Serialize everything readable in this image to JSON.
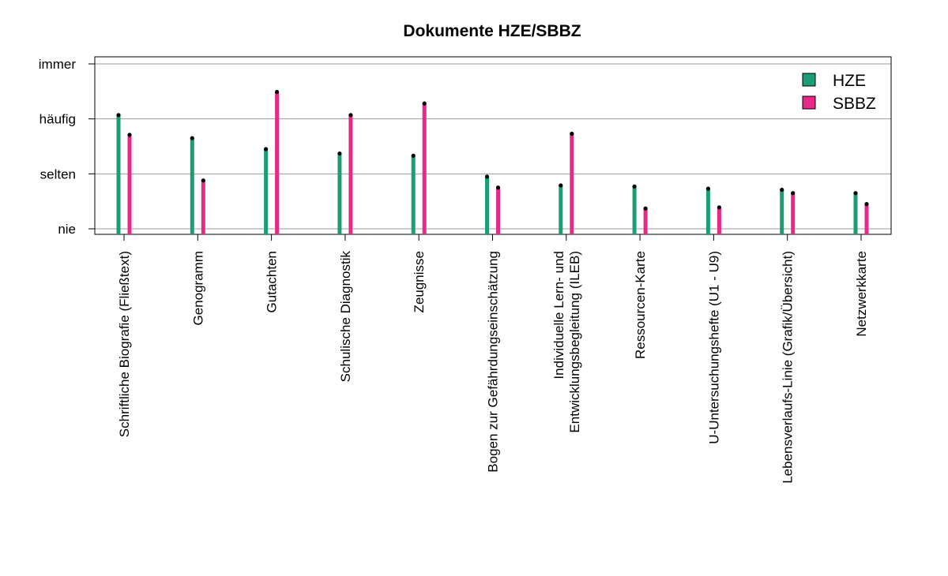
{
  "chart_data": {
    "type": "bar",
    "title": "Dokumente HZE/SBBZ",
    "xlabel": "",
    "ylabel": "",
    "y_tick_values": [
      0,
      1,
      2,
      3
    ],
    "y_tick_labels": [
      "nie",
      "selten",
      "häufig",
      "immer"
    ],
    "ylim": [
      0,
      3
    ],
    "grid": true,
    "legend_position": "top-right",
    "categories": [
      [
        "Schriftliche Biografie (Fließtext)"
      ],
      [
        "Genogramm"
      ],
      [
        "Gutachten"
      ],
      [
        "Schulische Diagnostik"
      ],
      [
        "Zeugnisse"
      ],
      [
        "Bogen zur Gefährdungseinschätzung"
      ],
      [
        "Individuelle Lern- und",
        "Entwicklungsbegleitung (ILEB)"
      ],
      [
        "Ressourcen-Karte"
      ],
      [
        "U-Untersuchungshefte (U1 - U9)"
      ],
      [
        "Lebensverlaufs-Linie (Grafik/Übersicht)"
      ],
      [
        "Netzwerkkarte"
      ]
    ],
    "series": [
      {
        "name": "HZE",
        "color": "#1b9e77",
        "values": [
          2.07,
          1.65,
          1.45,
          1.37,
          1.33,
          0.95,
          0.79,
          0.77,
          0.73,
          0.71,
          0.65
        ]
      },
      {
        "name": "SBBZ",
        "color": "#e7298a",
        "values": [
          1.71,
          0.88,
          2.49,
          2.07,
          2.28,
          0.75,
          1.73,
          0.37,
          0.39,
          0.65,
          0.45
        ]
      }
    ]
  }
}
